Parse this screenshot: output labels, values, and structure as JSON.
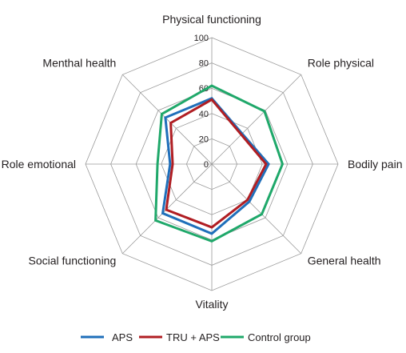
{
  "chart_data": {
    "type": "radar",
    "axes": [
      "Physical functioning",
      "Role physical",
      "Bodily pain",
      "General health",
      "Vitality",
      "Social functioning",
      "Role emotional",
      "Menthal health"
    ],
    "ticks": [
      "0",
      "20",
      "40",
      "60",
      "80",
      "100"
    ],
    "rlim": [
      0,
      100
    ],
    "grid": true,
    "legend_position": "bottom",
    "series": [
      {
        "name": "APS",
        "color": "#1f6fba",
        "values": [
          52,
          34,
          45,
          42,
          55,
          55,
          33,
          52
        ]
      },
      {
        "name": "TRU + APS",
        "color": "#b01e23",
        "values": [
          51,
          33,
          43,
          40,
          50,
          51,
          31,
          46
        ]
      },
      {
        "name": "Control group",
        "color": "#1fa86a",
        "values": [
          62,
          59,
          56,
          56,
          61,
          63,
          43,
          56
        ]
      }
    ]
  }
}
